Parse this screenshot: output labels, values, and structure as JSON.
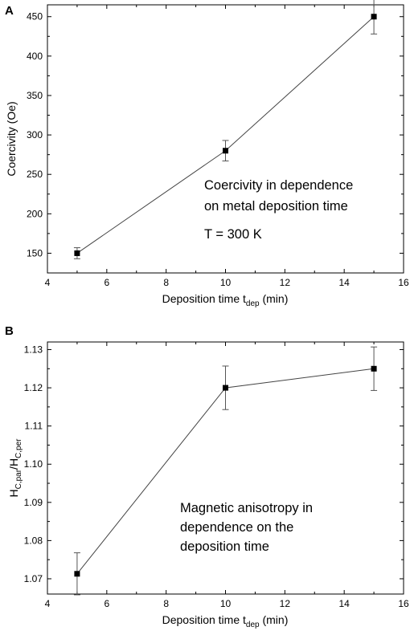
{
  "chart_data": [
    {
      "panel_label": "A",
      "type": "line",
      "xlabel_main": "Deposition time t",
      "xlabel_sub": "dep",
      "xlabel_tail": " (min)",
      "ylabel": "Coercivity (Oe)",
      "xlim": [
        4,
        16
      ],
      "ylim": [
        125,
        465
      ],
      "x_ticks": [
        4,
        6,
        8,
        10,
        12,
        14,
        16
      ],
      "y_ticks": [
        150,
        200,
        250,
        300,
        350,
        400,
        450
      ],
      "series": [
        {
          "x": [
            5,
            10,
            15
          ],
          "y": [
            150,
            280,
            450
          ],
          "err": [
            7,
            13,
            22
          ]
        }
      ],
      "annotation_lines": [
        "Coercivity in dependence",
        "on metal deposition time",
        "",
        "T = 300 K"
      ],
      "marker": "square",
      "line_color": "#444444",
      "marker_color": "#000000"
    },
    {
      "panel_label": "B",
      "type": "line",
      "xlabel_main": "Deposition time t",
      "xlabel_sub": "dep",
      "xlabel_tail": " (min)",
      "ylabel_main_1": "H",
      "ylabel_sub_1": "C,par",
      "ylabel_sep": "/H",
      "ylabel_sub_2": "C,per",
      "xlim": [
        4,
        16
      ],
      "ylim": [
        1.066,
        1.132
      ],
      "x_ticks": [
        4,
        6,
        8,
        10,
        12,
        14,
        16
      ],
      "y_ticks": [
        1.07,
        1.08,
        1.09,
        1.1,
        1.11,
        1.12,
        1.13
      ],
      "y_tick_labels": [
        "1.07",
        "1.08",
        "1.09",
        "1.10",
        "1.11",
        "1.12",
        "1.13"
      ],
      "series": [
        {
          "x": [
            5,
            10,
            15
          ],
          "y": [
            1.0713,
            1.12,
            1.125
          ],
          "err": [
            0.0055,
            0.0057,
            0.0057
          ]
        }
      ],
      "annotation_lines": [
        "Magnetic anisotropy in",
        "dependence on the",
        "deposition time"
      ],
      "marker": "square",
      "line_color": "#444444",
      "marker_color": "#000000"
    }
  ]
}
